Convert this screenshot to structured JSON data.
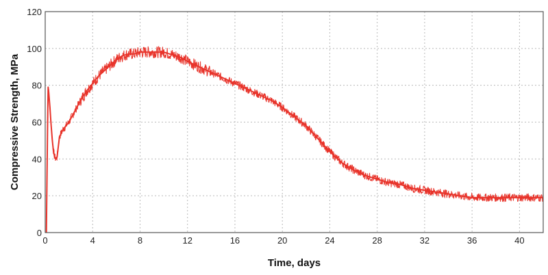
{
  "chart_data": {
    "type": "line",
    "title": "",
    "xlabel": "Time, days",
    "ylabel": "Compressive Strength, MPa",
    "xlim": [
      0,
      42
    ],
    "ylim": [
      0,
      120
    ],
    "xticks": [
      0,
      4,
      8,
      12,
      16,
      20,
      24,
      28,
      32,
      36,
      40
    ],
    "yticks": [
      0,
      20,
      40,
      60,
      80,
      100,
      120
    ],
    "grid": true,
    "legend": "none",
    "series": [
      {
        "color": "#e8332a",
        "band_width": 5,
        "x": [
          0.1,
          0.15,
          0.2,
          0.25,
          0.3,
          0.4,
          0.5,
          0.6,
          0.7,
          0.8,
          0.9,
          1.0,
          1.2,
          1.5,
          2,
          2.5,
          3,
          3.5,
          4,
          4.5,
          5,
          5.5,
          6,
          6.5,
          7,
          7.5,
          8,
          8.5,
          9,
          9.5,
          10,
          10.5,
          11,
          11.5,
          12,
          13,
          14,
          15,
          16,
          17,
          18,
          19,
          20,
          21,
          22,
          23,
          24,
          25,
          26,
          27,
          28,
          29,
          30,
          31,
          32,
          33,
          34,
          35,
          36,
          37,
          38,
          39,
          40,
          41,
          42
        ],
        "y": [
          0,
          30,
          60,
          79,
          76,
          68,
          58,
          50,
          44,
          41,
          40,
          41,
          52,
          56,
          60,
          66,
          72,
          77,
          81,
          85,
          88,
          91,
          94,
          96,
          97,
          97,
          98,
          98,
          98,
          98,
          98,
          97,
          96,
          95,
          93,
          90,
          87,
          84,
          81,
          78,
          75,
          72,
          68,
          63,
          58,
          51,
          44,
          38,
          34,
          31,
          29,
          27,
          26,
          24,
          23,
          22,
          21,
          20,
          19,
          19,
          19,
          19,
          19,
          19,
          19
        ]
      }
    ]
  }
}
